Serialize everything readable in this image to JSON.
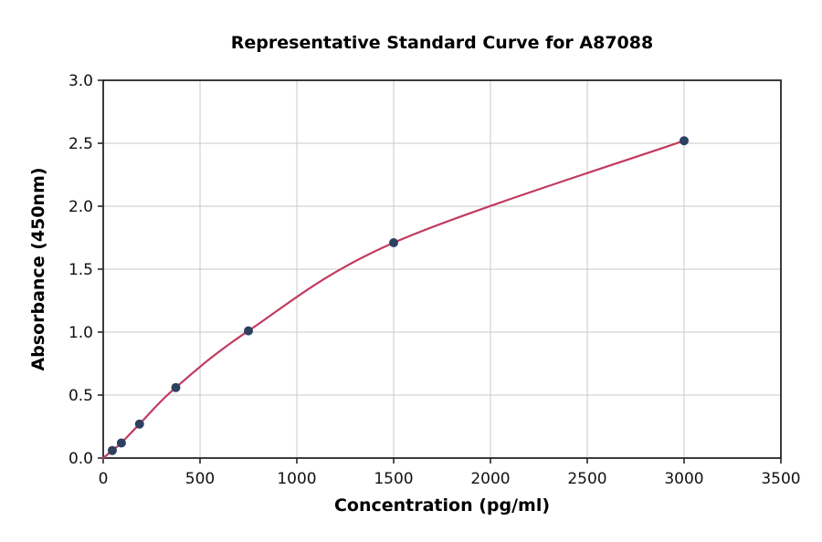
{
  "chart_data": {
    "type": "scatter",
    "title": "Representative Standard Curve for A87088",
    "xlabel": "Concentration (pg/ml)",
    "ylabel": "Absorbance (450nm)",
    "x": [
      46.9,
      93.8,
      187.5,
      375,
      750,
      1500,
      3000
    ],
    "y": [
      0.06,
      0.12,
      0.27,
      0.56,
      1.01,
      1.71,
      2.52
    ],
    "curve_start": [
      0,
      0.0
    ],
    "xlim": [
      0,
      3500
    ],
    "ylim": [
      0,
      3.0
    ],
    "xticks": [
      0,
      500,
      1000,
      1500,
      2000,
      2500,
      3000,
      3500
    ],
    "xtick_labels": [
      "0",
      "500",
      "1000",
      "1500",
      "2000",
      "2500",
      "3000",
      "3500"
    ],
    "yticks": [
      0,
      0.5,
      1,
      1.5,
      2,
      2.5,
      3
    ],
    "ytick_labels": [
      "0.0",
      "0.5",
      "1.0",
      "1.5",
      "2.0",
      "2.5",
      "3.0"
    ],
    "grid": true,
    "legend_position": "none",
    "colors": {
      "curve": "#c23b60",
      "marker": "#2d4060",
      "grid": "#c9c9c9",
      "spine": "#262626",
      "text": "#000000"
    }
  }
}
